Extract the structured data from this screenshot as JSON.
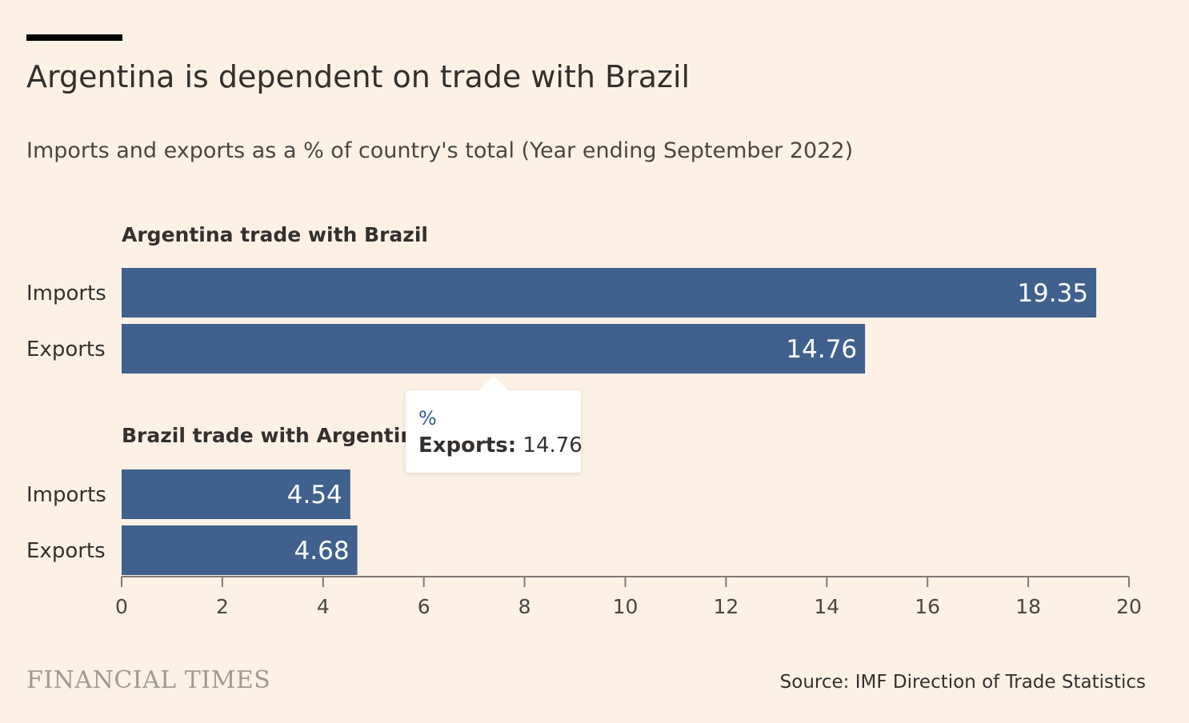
{
  "title": "Argentina is dependent on trade with Brazil",
  "subtitle": "Imports and exports as a % of country's total (Year ending September 2022)",
  "source": "Source: IMF Direction of Trade Statistics",
  "brand": "FINANCIAL TIMES",
  "tooltip": {
    "unit": "%",
    "label": "Exports:",
    "value": "14.76"
  },
  "colors": {
    "background": "#fdf1e5",
    "bar": "#40618d",
    "title_bar": "#000000",
    "axis": "#807973"
  },
  "chart_data": {
    "type": "bar",
    "orientation": "horizontal",
    "xlim": [
      0,
      20
    ],
    "xticks": [
      0,
      2,
      4,
      6,
      8,
      10,
      12,
      14,
      16,
      18,
      20
    ],
    "groups": [
      {
        "name": "Argentina trade with Brazil",
        "categories": [
          "Imports",
          "Exports"
        ],
        "values": [
          19.35,
          14.76
        ],
        "labels": [
          "19.35",
          "14.76"
        ]
      },
      {
        "name": "Brazil trade with Argentina",
        "categories": [
          "Imports",
          "Exports"
        ],
        "values": [
          4.54,
          4.68
        ],
        "labels": [
          "4.54",
          "4.68"
        ]
      }
    ]
  }
}
